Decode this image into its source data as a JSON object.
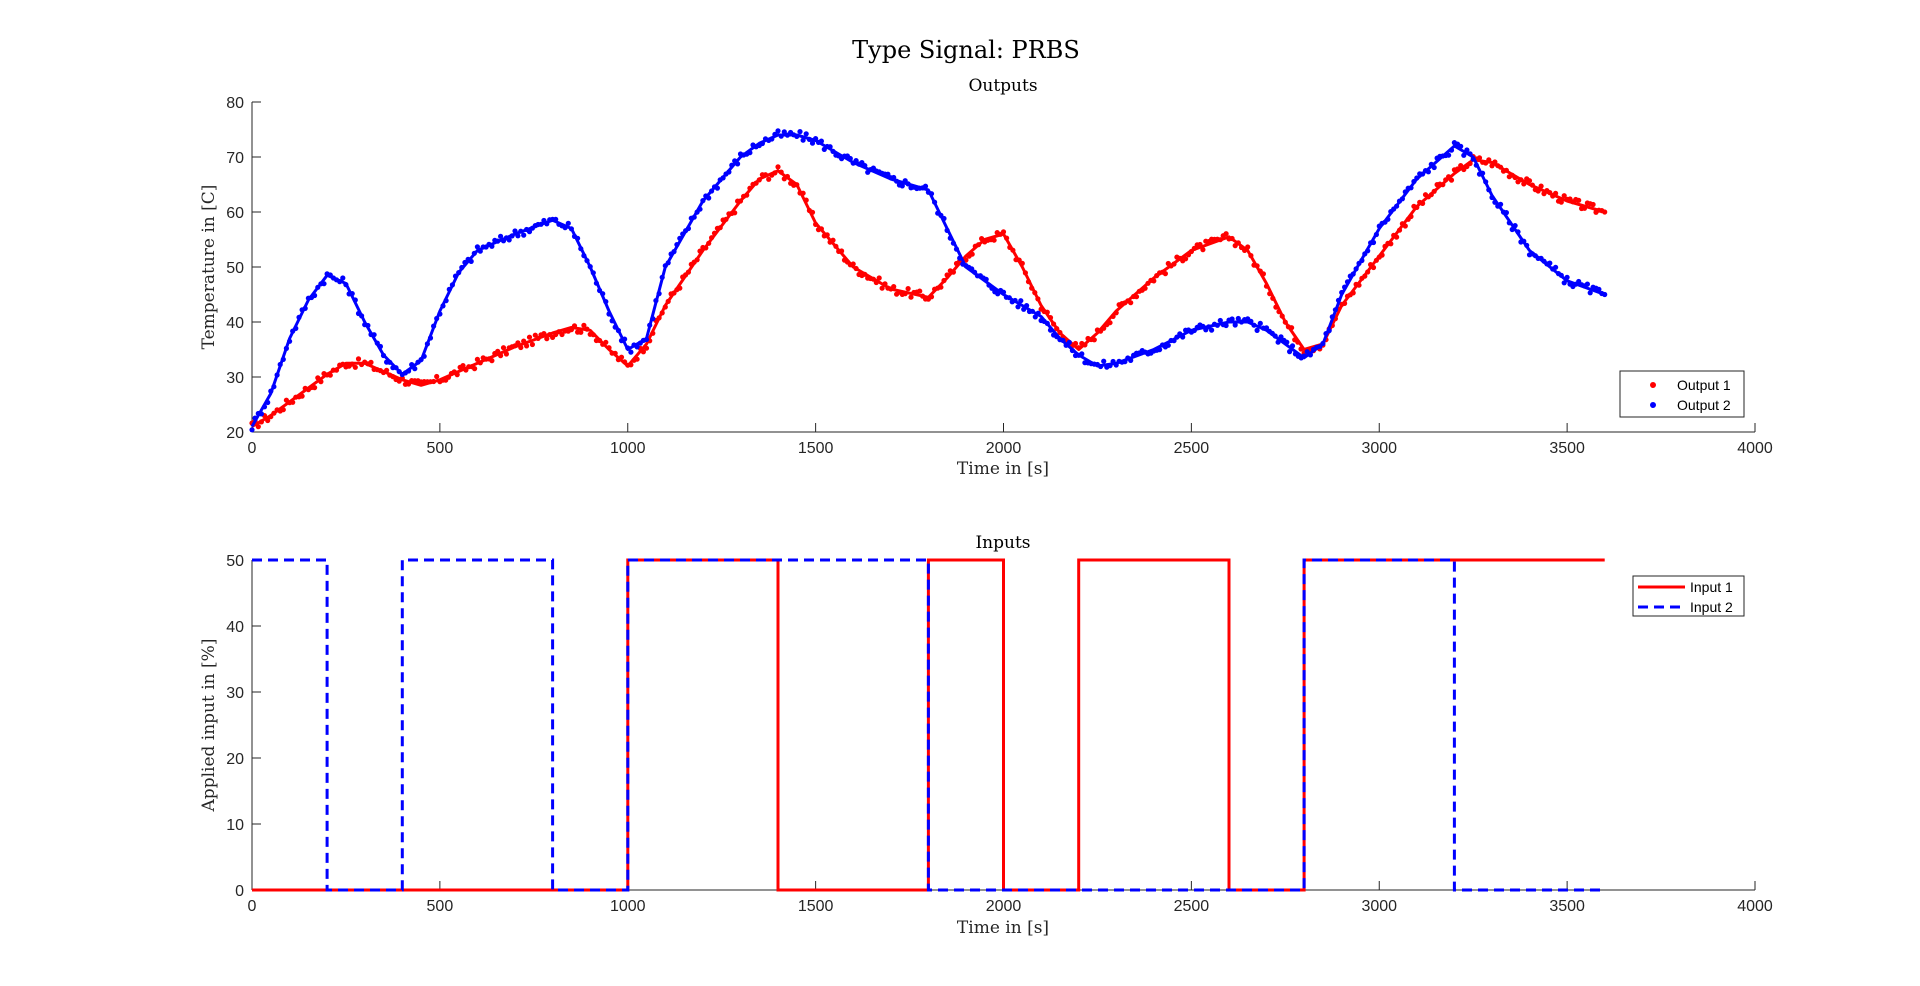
{
  "figure": {
    "suptitle": "Type Signal: PRBS"
  },
  "colors": {
    "red": "#ff0000",
    "blue": "#0000ff",
    "axis": "#262626"
  },
  "chart_data": [
    {
      "type": "scatter",
      "title": "Outputs",
      "xlabel": "Time in [s]",
      "ylabel": "Temperature in [C]",
      "xlim": [
        0,
        4000
      ],
      "ylim": [
        20,
        80
      ],
      "xticks": [
        "0",
        "500",
        "1000",
        "1500",
        "2000",
        "2500",
        "3000",
        "3500",
        "4000"
      ],
      "yticks": [
        "20",
        "30",
        "40",
        "50",
        "60",
        "70",
        "80"
      ],
      "grid": false,
      "legend_position": "bottom-right",
      "series": [
        {
          "name": "Output 1",
          "color": "#ff0000",
          "points": [
            [
              0,
              21
            ],
            [
              50,
              23
            ],
            [
              100,
              25.5
            ],
            [
              150,
              28
            ],
            [
              200,
              30.5
            ],
            [
              250,
              32.5
            ],
            [
              300,
              32.5
            ],
            [
              350,
              31
            ],
            [
              400,
              29.5
            ],
            [
              450,
              28.5
            ],
            [
              500,
              29.5
            ],
            [
              600,
              32.5
            ],
            [
              700,
              35.5
            ],
            [
              800,
              38
            ],
            [
              850,
              39
            ],
            [
              900,
              38.5
            ],
            [
              950,
              35
            ],
            [
              1000,
              32
            ],
            [
              1050,
              36
            ],
            [
              1100,
              43
            ],
            [
              1200,
              53
            ],
            [
              1300,
              62
            ],
            [
              1350,
              66
            ],
            [
              1400,
              67.5
            ],
            [
              1450,
              65
            ],
            [
              1500,
              58
            ],
            [
              1600,
              50
            ],
            [
              1700,
              46
            ],
            [
              1800,
              44.5
            ],
            [
              1850,
              48
            ],
            [
              1900,
              52
            ],
            [
              1950,
              55
            ],
            [
              2000,
              56
            ],
            [
              2050,
              50
            ],
            [
              2100,
              43
            ],
            [
              2150,
              38
            ],
            [
              2200,
              35
            ],
            [
              2250,
              38
            ],
            [
              2300,
              42
            ],
            [
              2400,
              48
            ],
            [
              2500,
              53
            ],
            [
              2600,
              55.5
            ],
            [
              2650,
              53
            ],
            [
              2700,
              47
            ],
            [
              2750,
              40
            ],
            [
              2800,
              35
            ],
            [
              2850,
              36
            ],
            [
              2900,
              43
            ],
            [
              3000,
              52
            ],
            [
              3100,
              61
            ],
            [
              3200,
              67
            ],
            [
              3250,
              69.5
            ],
            [
              3300,
              69
            ],
            [
              3400,
              65
            ],
            [
              3500,
              62
            ],
            [
              3600,
              60
            ]
          ]
        },
        {
          "name": "Output 2",
          "color": "#0000ff",
          "points": [
            [
              0,
              21
            ],
            [
              50,
              27
            ],
            [
              100,
              37
            ],
            [
              150,
              44
            ],
            [
              200,
              48.5
            ],
            [
              250,
              47
            ],
            [
              300,
              40
            ],
            [
              350,
              34
            ],
            [
              400,
              30.5
            ],
            [
              450,
              33
            ],
            [
              500,
              42
            ],
            [
              550,
              49
            ],
            [
              600,
              53
            ],
            [
              700,
              56
            ],
            [
              800,
              58.5
            ],
            [
              850,
              57
            ],
            [
              900,
              50
            ],
            [
              950,
              42
            ],
            [
              1000,
              35
            ],
            [
              1050,
              37
            ],
            [
              1100,
              50
            ],
            [
              1200,
              62
            ],
            [
              1300,
              70
            ],
            [
              1350,
              72.5
            ],
            [
              1400,
              74
            ],
            [
              1450,
              74
            ],
            [
              1500,
              73
            ],
            [
              1600,
              69
            ],
            [
              1700,
              66
            ],
            [
              1800,
              64
            ],
            [
              1850,
              57
            ],
            [
              1900,
              50
            ],
            [
              2000,
              45
            ],
            [
              2100,
              41
            ],
            [
              2150,
              37
            ],
            [
              2200,
              34
            ],
            [
              2250,
              32
            ],
            [
              2300,
              32.5
            ],
            [
              2400,
              35
            ],
            [
              2500,
              38.5
            ],
            [
              2600,
              40
            ],
            [
              2650,
              40
            ],
            [
              2700,
              38.5
            ],
            [
              2800,
              33.5
            ],
            [
              2850,
              36
            ],
            [
              2900,
              45
            ],
            [
              3000,
              57
            ],
            [
              3100,
              66
            ],
            [
              3200,
              72
            ],
            [
              3250,
              70
            ],
            [
              3300,
              63
            ],
            [
              3400,
              53
            ],
            [
              3500,
              47.5
            ],
            [
              3600,
              45
            ]
          ]
        }
      ]
    },
    {
      "type": "line",
      "title": "Inputs",
      "xlabel": "Time in [s]",
      "ylabel": "Applied input in [%]",
      "xlim": [
        0,
        4000
      ],
      "ylim": [
        0,
        50
      ],
      "xticks": [
        "0",
        "500",
        "1000",
        "1500",
        "2000",
        "2500",
        "3000",
        "3500",
        "4000"
      ],
      "yticks": [
        "0",
        "10",
        "20",
        "30",
        "40",
        "50"
      ],
      "grid": false,
      "legend_position": "top-right",
      "series": [
        {
          "name": "Input 1",
          "color": "#ff0000",
          "style": "solid",
          "points": [
            [
              0,
              0
            ],
            [
              1000,
              0
            ],
            [
              1000,
              50
            ],
            [
              1400,
              50
            ],
            [
              1400,
              0
            ],
            [
              1800,
              0
            ],
            [
              1800,
              50
            ],
            [
              2000,
              50
            ],
            [
              2000,
              0
            ],
            [
              2200,
              0
            ],
            [
              2200,
              50
            ],
            [
              2600,
              50
            ],
            [
              2600,
              0
            ],
            [
              2800,
              0
            ],
            [
              2800,
              50
            ],
            [
              3600,
              50
            ]
          ]
        },
        {
          "name": "Input 2",
          "color": "#0000ff",
          "style": "dashed",
          "points": [
            [
              0,
              50
            ],
            [
              200,
              50
            ],
            [
              200,
              0
            ],
            [
              400,
              0
            ],
            [
              400,
              50
            ],
            [
              800,
              50
            ],
            [
              800,
              0
            ],
            [
              1000,
              0
            ],
            [
              1000,
              50
            ],
            [
              1800,
              50
            ],
            [
              1800,
              0
            ],
            [
              2800,
              0
            ],
            [
              2800,
              50
            ],
            [
              3200,
              50
            ],
            [
              3200,
              0
            ],
            [
              3600,
              0
            ]
          ]
        }
      ]
    }
  ]
}
